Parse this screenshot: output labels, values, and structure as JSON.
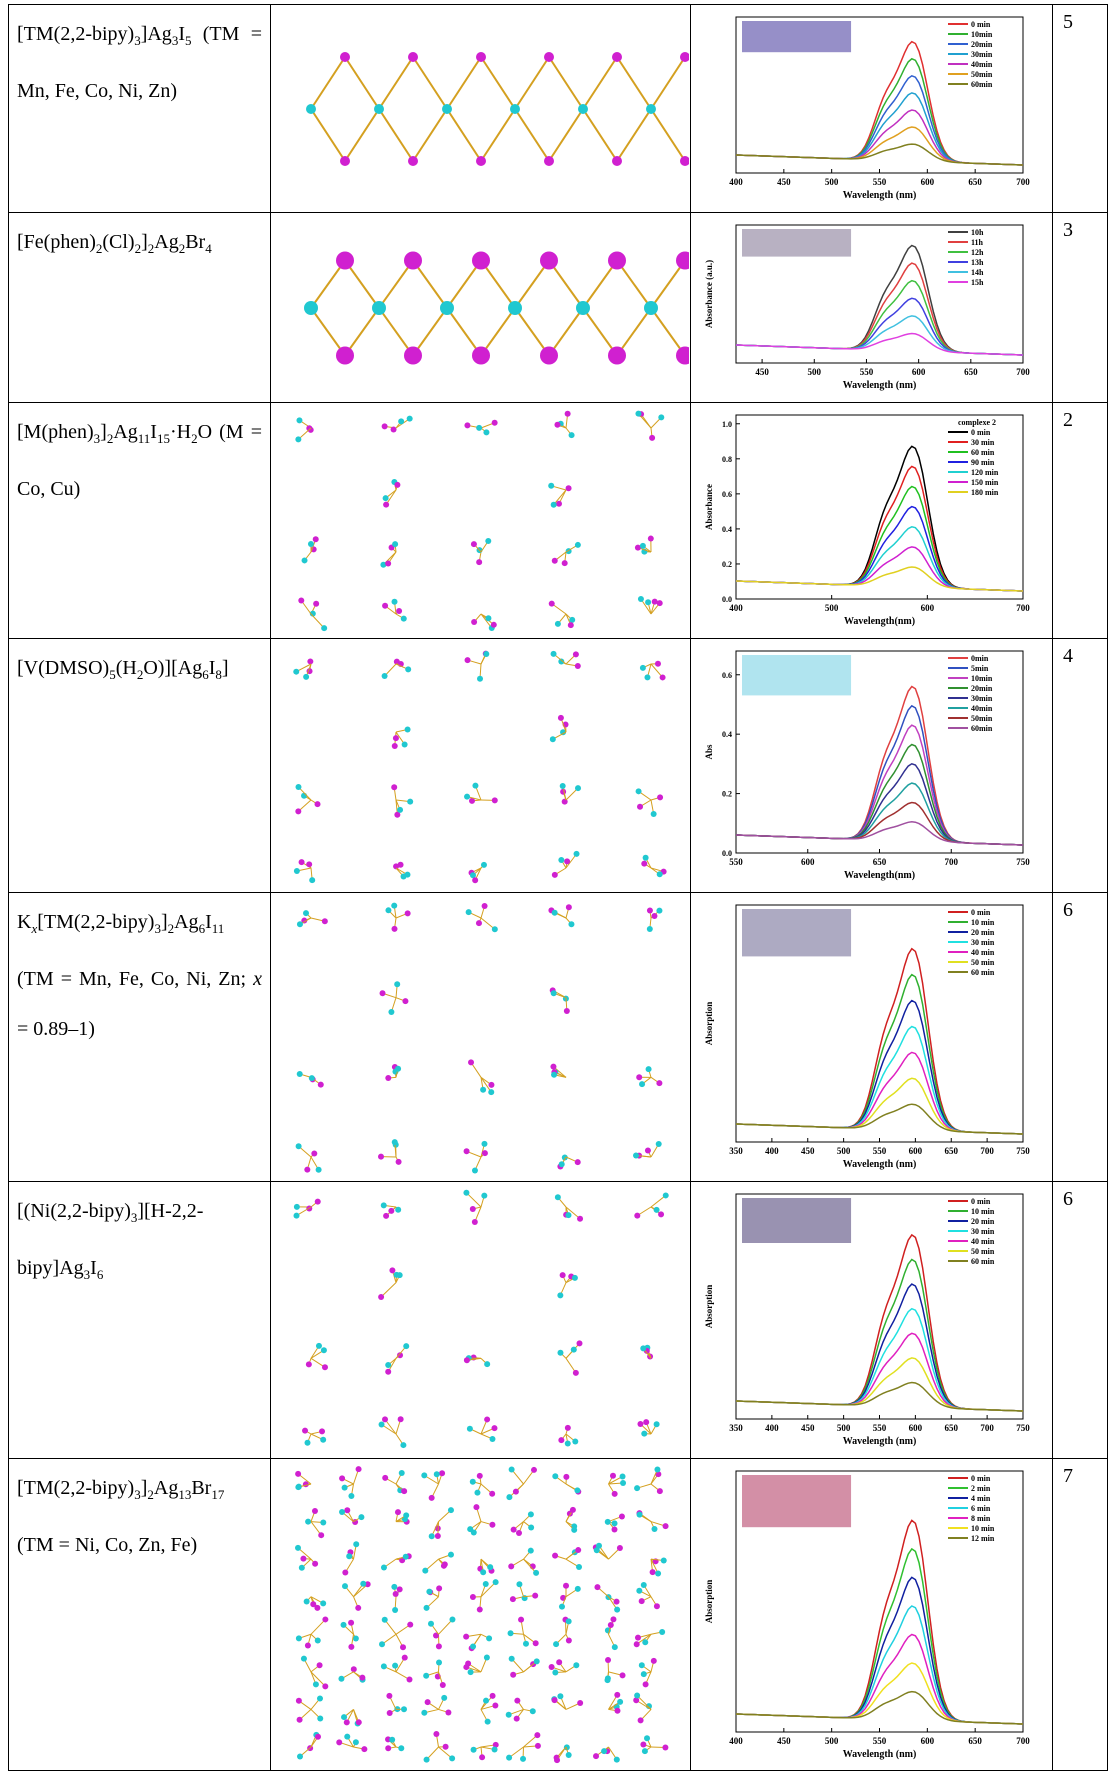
{
  "table": {
    "rows": [
      {
        "formula": [
          "[TM(2,2-bipy)",
          {
            "sub": "3"
          },
          "]Ag",
          {
            "sub": "3"
          },
          "I",
          {
            "sub": "5"
          },
          " (TM = Mn, Fe, Co, Ni, Zn)"
        ],
        "spectrum": {
          "xlim": [
            400,
            700
          ],
          "xticks": [
            400,
            450,
            500,
            550,
            600,
            650,
            700
          ],
          "xlabel": "Wavelength (nm)",
          "legend": [
            {
              "name": "0 min",
              "color": "#e03030"
            },
            {
              "name": "10min",
              "color": "#30b030"
            },
            {
              "name": "20min",
              "color": "#3060d0"
            },
            {
              "name": "30min",
              "color": "#20a0d0"
            },
            {
              "name": "40min",
              "color": "#c030c0"
            },
            {
              "name": "50min",
              "color": "#e0a020"
            },
            {
              "name": "60min",
              "color": "#808020"
            }
          ],
          "photo": "#6a5fb0"
        },
        "ref": "5"
      },
      {
        "formula": [
          "[Fe(phen)",
          {
            "sub": "2"
          },
          "(Cl)",
          {
            "sub": "2"
          },
          "]",
          {
            "sub": "2"
          },
          "Ag",
          {
            "sub": "2"
          },
          "Br",
          {
            "sub": "4"
          }
        ],
        "spectrum": {
          "xlim": [
            425,
            700
          ],
          "xticks": [
            450,
            500,
            550,
            600,
            650,
            700
          ],
          "xlabel": "Wavelength (nm)",
          "ylabel": "Absorbance (a.u.)",
          "legend": [
            {
              "name": "10h",
              "color": "#404040"
            },
            {
              "name": "11h",
              "color": "#e04040"
            },
            {
              "name": "12h",
              "color": "#40c040"
            },
            {
              "name": "13h",
              "color": "#4040e0"
            },
            {
              "name": "14h",
              "color": "#40c0e0"
            },
            {
              "name": "15h",
              "color": "#e040e0"
            }
          ],
          "photo": "#9a90a8"
        },
        "ref": "3"
      },
      {
        "formula": [
          "[M(phen)",
          {
            "sub": "3"
          },
          "]",
          {
            "sub": "2"
          },
          "Ag",
          {
            "sub": "11"
          },
          "I",
          {
            "sub": "15"
          },
          "·H",
          {
            "sub": "2"
          },
          "O (M = Co, Cu)"
        ],
        "spectrum": {
          "xlim": [
            400,
            700
          ],
          "xticks": [
            400,
            500,
            600,
            700
          ],
          "ylim": [
            0.0,
            1.05
          ],
          "yticks": [
            {
              "value": 0,
              "label": "0.0"
            },
            0.2,
            0.4,
            0.6,
            0.8,
            {
              "value": 1,
              "label": "1.0"
            }
          ],
          "xlabel": "Wavelength(nm)",
          "ylabel": "Absorbance",
          "legend_title": "complexe 2",
          "legend": [
            {
              "name": "0 min",
              "color": "#000000"
            },
            {
              "name": "30 min",
              "color": "#e02020"
            },
            {
              "name": "60 min",
              "color": "#20c020"
            },
            {
              "name": "90 min",
              "color": "#2020e0"
            },
            {
              "name": "120 min",
              "color": "#20d0d0"
            },
            {
              "name": "150 min",
              "color": "#d020d0"
            },
            {
              "name": "180 min",
              "color": "#e0d020"
            }
          ]
        },
        "ref": "2"
      },
      {
        "formula": [
          "[V(DMSO)",
          {
            "sub": "5"
          },
          "(H",
          {
            "sub": "2"
          },
          "O)][Ag",
          {
            "sub": "6"
          },
          "I",
          {
            "sub": "8"
          },
          "]"
        ],
        "spectrum": {
          "xlim": [
            550,
            750
          ],
          "xticks": [
            550,
            600,
            650,
            700,
            750
          ],
          "ylim": [
            0.0,
            0.68
          ],
          "yticks": [
            {
              "value": 0,
              "label": "0.0"
            },
            0.2,
            0.4,
            0.6
          ],
          "xlabel": "Wavelength(nm)",
          "ylabel": "Abs",
          "legend": [
            {
              "name": "0min",
              "color": "#e04040"
            },
            {
              "name": "5min",
              "color": "#3050c0"
            },
            {
              "name": "10min",
              "color": "#c040c0"
            },
            {
              "name": "20min",
              "color": "#309030"
            },
            {
              "name": "30min",
              "color": "#303090"
            },
            {
              "name": "40min",
              "color": "#20a0a0"
            },
            {
              "name": "50min",
              "color": "#a03030"
            },
            {
              "name": "60min",
              "color": "#a050a0"
            }
          ],
          "photo": "#8fd8e8"
        },
        "ref": "4"
      },
      {
        "formula": [
          "K",
          {
            "sub": "x",
            "italic": true
          },
          "[TM(2,2-bipy)",
          {
            "sub": "3"
          },
          "]",
          {
            "sub": "2"
          },
          "Ag",
          {
            "sub": "6"
          },
          "I",
          {
            "sub": "11"
          },
          " (TM = Mn, Fe, Co, Ni, Zn; ",
          {
            "italic": "x"
          },
          " = 0.89–1)"
        ],
        "spectrum": {
          "xlim": [
            350,
            750
          ],
          "xticks": [
            350,
            400,
            450,
            500,
            550,
            600,
            650,
            700,
            750
          ],
          "xlabel": "Wavelength (nm)",
          "ylabel": "Absorption",
          "legend": [
            {
              "name": "0 min",
              "color": "#d02020"
            },
            {
              "name": "10 min",
              "color": "#30b030"
            },
            {
              "name": "20 min",
              "color": "#1020a0"
            },
            {
              "name": "30 min",
              "color": "#20e0e0"
            },
            {
              "name": "40 min",
              "color": "#e020c0"
            },
            {
              "name": "50 min",
              "color": "#e0e020"
            },
            {
              "name": "60 min",
              "color": "#808020"
            }
          ],
          "photo": "#8a86a8"
        },
        "ref": "6"
      },
      {
        "formula": [
          "[(Ni(2,2-bipy)",
          {
            "sub": "3"
          },
          "][H-2,2-bipy]Ag",
          {
            "sub": "3"
          },
          "I",
          {
            "sub": "6"
          }
        ],
        "spectrum": {
          "xlim": [
            350,
            750
          ],
          "xticks": [
            350,
            400,
            450,
            500,
            550,
            600,
            650,
            700,
            750
          ],
          "xlabel": "Wavelength (nm)",
          "ylabel": "Absorption",
          "legend": [
            {
              "name": "0 min",
              "color": "#d02020"
            },
            {
              "name": "10 min",
              "color": "#30b030"
            },
            {
              "name": "20 min",
              "color": "#1020a0"
            },
            {
              "name": "30 min",
              "color": "#20e0e0"
            },
            {
              "name": "40 min",
              "color": "#e020c0"
            },
            {
              "name": "50 min",
              "color": "#e0e020"
            },
            {
              "name": "60 min",
              "color": "#808020"
            }
          ],
          "photo": "#6e6490"
        },
        "ref": "6"
      },
      {
        "formula": [
          "[TM(2,2-bipy)",
          {
            "sub": "3"
          },
          "]",
          {
            "sub": "2"
          },
          "Ag",
          {
            "sub": "13"
          },
          "Br",
          {
            "sub": "17"
          },
          " (TM = Ni, Co, Zn, Fe)"
        ],
        "spectrum": {
          "xlim": [
            400,
            700
          ],
          "xticks": [
            400,
            450,
            500,
            550,
            600,
            650,
            700
          ],
          "xlabel": "Wavelength (nm)",
          "ylabel": "Absorption",
          "legend": [
            {
              "name": "0 min",
              "color": "#d02020"
            },
            {
              "name": "2 min",
              "color": "#30c030"
            },
            {
              "name": "4 min",
              "color": "#1020a0"
            },
            {
              "name": "6 min",
              "color": "#20d0e0"
            },
            {
              "name": "8 min",
              "color": "#e020c0"
            },
            {
              "name": "10 min",
              "color": "#f0e020"
            },
            {
              "name": "12 min",
              "color": "#808020"
            }
          ],
          "photo": "#c06080"
        },
        "ref": "7"
      }
    ]
  }
}
